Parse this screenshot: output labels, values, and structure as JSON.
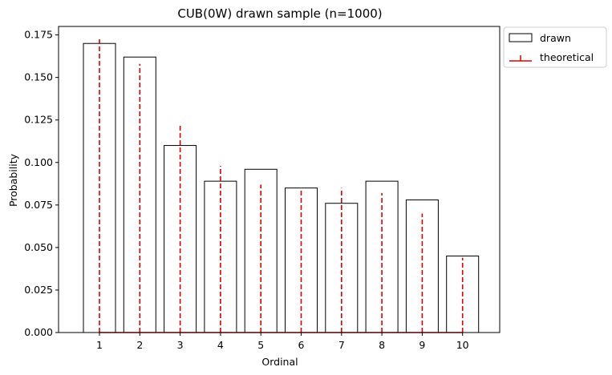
{
  "chart_data": {
    "type": "bar",
    "title": "CUB(0W) drawn sample (n=1000)",
    "xlabel": "Ordinal",
    "ylabel": "Probability",
    "ylim": [
      0,
      0.18
    ],
    "yticks": [
      "0.000",
      "0.025",
      "0.050",
      "0.075",
      "0.100",
      "0.125",
      "0.150",
      "0.175"
    ],
    "ytick_values": [
      0,
      0.025,
      0.05,
      0.075,
      0.1,
      0.125,
      0.15,
      0.175
    ],
    "categories": [
      "1",
      "2",
      "3",
      "4",
      "5",
      "6",
      "7",
      "8",
      "9",
      "10"
    ],
    "series": [
      {
        "name": "drawn",
        "style": "bar-outline",
        "color": "#000000",
        "values": [
          0.17,
          0.162,
          0.11,
          0.089,
          0.096,
          0.085,
          0.076,
          0.089,
          0.078,
          0.045
        ]
      },
      {
        "name": "theoretical",
        "style": "dashed-stem",
        "color": "#e00000",
        "values": [
          0.173,
          0.158,
          0.122,
          0.098,
          0.087,
          0.085,
          0.085,
          0.082,
          0.07,
          0.044
        ]
      }
    ],
    "legend": {
      "position": "outside-top-right",
      "entries": [
        "drawn",
        "theoretical"
      ]
    },
    "grid": false
  }
}
